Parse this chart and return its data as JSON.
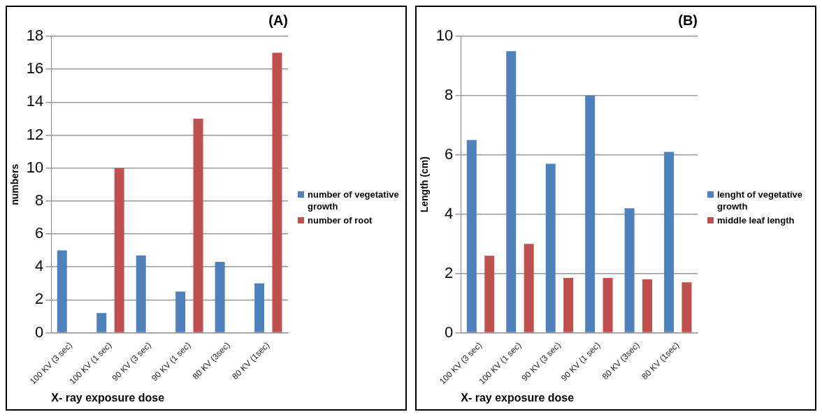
{
  "chart_data": [
    {
      "type": "bar",
      "title": "(A)",
      "xlabel": "X- ray exposure dose",
      "ylabel": "numbers",
      "categories": [
        "100 KV (3 sec)",
        "100 KV (1 sec)",
        "90 KV (3 sec)",
        "90 KV (1 sec)",
        "80 KV (3sec)",
        "80 KV (1sec)"
      ],
      "series": [
        {
          "name": "number of vegetative growth",
          "color": "#4f81bd",
          "values": [
            5,
            1.2,
            4.7,
            2.5,
            4.3,
            3
          ]
        },
        {
          "name": "number of root",
          "color": "#c0504d",
          "values": [
            null,
            10,
            null,
            13,
            null,
            17
          ]
        }
      ],
      "ylim": [
        0,
        18
      ],
      "yticks": [
        0,
        2,
        4,
        6,
        8,
        10,
        12,
        14,
        16,
        18
      ],
      "grid": "y",
      "legend": "right"
    },
    {
      "type": "bar",
      "title": "(B)",
      "xlabel": "X- ray exposure dose",
      "ylabel": "Length (cm)",
      "categories": [
        "100 KV (3 sec)",
        "100 KV (1 sec)",
        "90 KV (3 sec)",
        "90 KV (1 sec)",
        "80 KV (3sec)",
        "80 KV (1sec)"
      ],
      "series": [
        {
          "name": "lenght of vegetative growth",
          "color": "#4f81bd",
          "values": [
            6.5,
            9.5,
            5.7,
            8,
            4.2,
            6.1
          ]
        },
        {
          "name": "middle leaf length",
          "color": "#c0504d",
          "values": [
            2.6,
            3,
            1.85,
            1.85,
            1.8,
            1.7
          ]
        }
      ],
      "ylim": [
        0,
        10
      ],
      "yticks": [
        0,
        2,
        4,
        6,
        8,
        10
      ],
      "grid": "y",
      "legend": "right"
    }
  ]
}
